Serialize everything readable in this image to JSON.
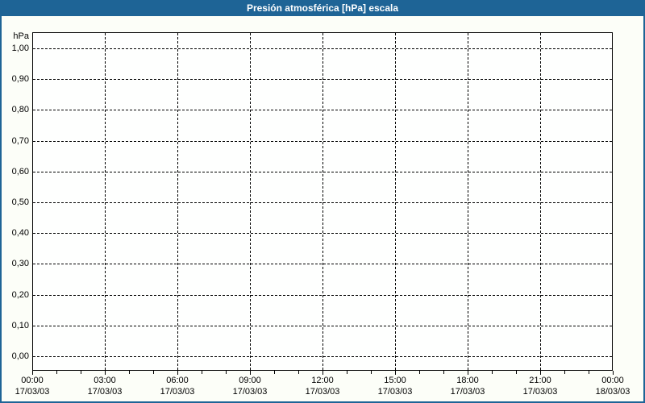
{
  "window": {
    "title": "Presión atmosférica [hPa] escala"
  },
  "chart_data": {
    "type": "line",
    "title": "Presión atmosférica [hPa] escala",
    "ylabel": "hPa",
    "ylim": [
      0.0,
      1.0
    ],
    "y_tick_step": 0.1,
    "y_tick_labels": [
      "1,00",
      "0,90",
      "0,80",
      "0,70",
      "0,60",
      "0,50",
      "0,40",
      "0,30",
      "0,20",
      "0,10",
      "0,00"
    ],
    "x_major_ticks": [
      {
        "time": "00:00",
        "date": "17/03/03"
      },
      {
        "time": "03:00",
        "date": "17/03/03"
      },
      {
        "time": "06:00",
        "date": "17/03/03"
      },
      {
        "time": "09:00",
        "date": "17/03/03"
      },
      {
        "time": "12:00",
        "date": "17/03/03"
      },
      {
        "time": "15:00",
        "date": "17/03/03"
      },
      {
        "time": "18:00",
        "date": "17/03/03"
      },
      {
        "time": "21:00",
        "date": "17/03/03"
      },
      {
        "time": "00:00",
        "date": "18/03/03"
      }
    ],
    "x_minor_ticks_per_hour": 1,
    "grid": "dashed",
    "legend": "none",
    "series": []
  },
  "colors": {
    "title_bar_bg": "#1E6496",
    "title_bar_fg": "#FFFFFF",
    "window_border": "#1E6496",
    "background": "#FCFEF8",
    "plot_background": "#FEFFFE",
    "axis": "#000000",
    "grid": "#000000",
    "text": "#000000"
  }
}
